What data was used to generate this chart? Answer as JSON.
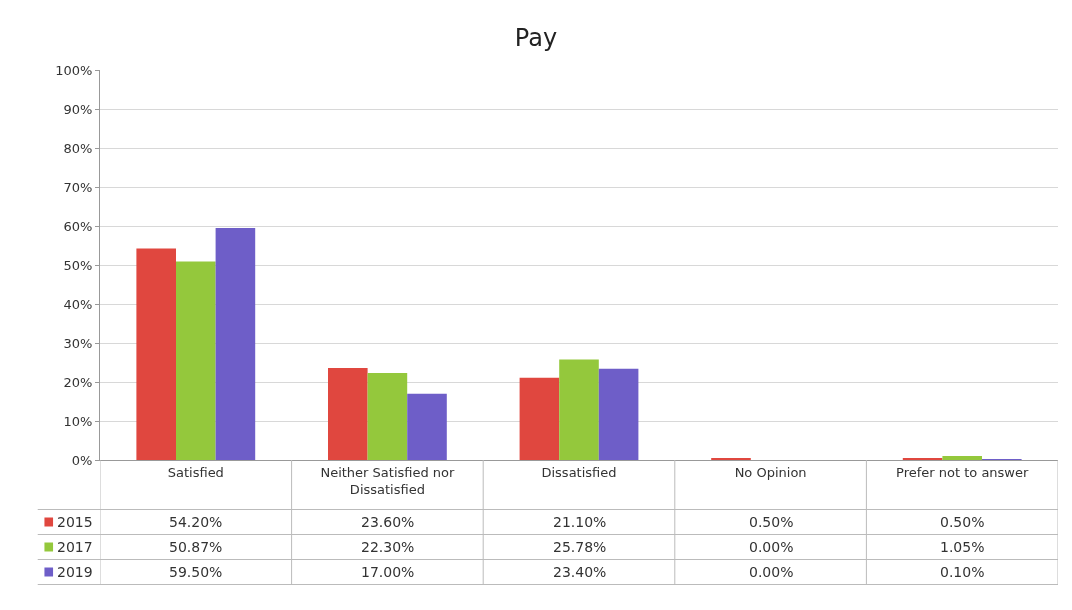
{
  "chart_data": {
    "type": "bar",
    "title": "Pay",
    "categories": [
      "Satisfied",
      "Neither Satisfied nor Dissatisfied",
      "Dissatisfied",
      "No Opinion",
      "Prefer not to answer"
    ],
    "series": [
      {
        "name": "2015",
        "color": "#e0473f",
        "values": [
          54.2,
          23.6,
          21.1,
          0.5,
          0.5
        ],
        "value_labels": [
          "54.20%",
          "23.60%",
          "21.10%",
          "0.50%",
          "0.50%"
        ]
      },
      {
        "name": "2017",
        "color": "#94c83c",
        "values": [
          50.87,
          22.3,
          25.78,
          0.0,
          1.05
        ],
        "value_labels": [
          "50.87%",
          "22.30%",
          "25.78%",
          "0.00%",
          "1.05%"
        ]
      },
      {
        "name": "2019",
        "color": "#6e5ec8",
        "values": [
          59.5,
          17.0,
          23.4,
          0.0,
          0.1
        ],
        "value_labels": [
          "59.50%",
          "17.00%",
          "23.40%",
          "0.00%",
          "0.10%"
        ]
      }
    ],
    "ylim": [
      0,
      100
    ],
    "yticks": [
      {
        "value": 0,
        "label": "0%"
      },
      {
        "value": 10,
        "label": "10%"
      },
      {
        "value": 20,
        "label": "20%"
      },
      {
        "value": 30,
        "label": "30%"
      },
      {
        "value": 40,
        "label": "40%"
      },
      {
        "value": 50,
        "label": "50%"
      },
      {
        "value": 60,
        "label": "60%"
      },
      {
        "value": 70,
        "label": "70%"
      },
      {
        "value": 80,
        "label": "80%"
      },
      {
        "value": 90,
        "label": "90%"
      },
      {
        "value": 100,
        "label": "100%"
      }
    ],
    "grid": "y",
    "legend": "bottom left"
  }
}
